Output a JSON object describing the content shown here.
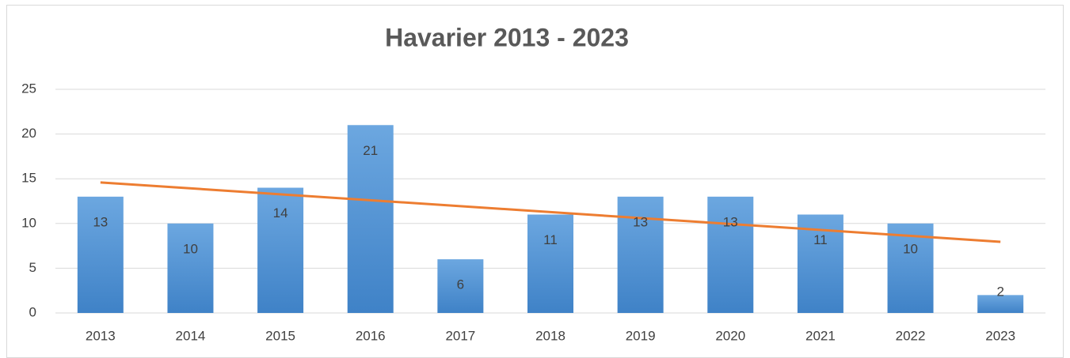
{
  "chart_data": {
    "type": "bar",
    "title": "Havarier 2013 - 2023",
    "categories": [
      "2013",
      "2014",
      "2015",
      "2016",
      "2017",
      "2018",
      "2019",
      "2020",
      "2021",
      "2022",
      "2023"
    ],
    "values": [
      13,
      10,
      14,
      21,
      6,
      11,
      13,
      13,
      11,
      10,
      2
    ],
    "color": "#5b9bd5",
    "ylim": [
      0,
      25
    ],
    "yticks": [
      0,
      5,
      10,
      15,
      20,
      25
    ],
    "grid": true,
    "trendline": {
      "type": "linear",
      "color": "#ed7d31"
    }
  }
}
